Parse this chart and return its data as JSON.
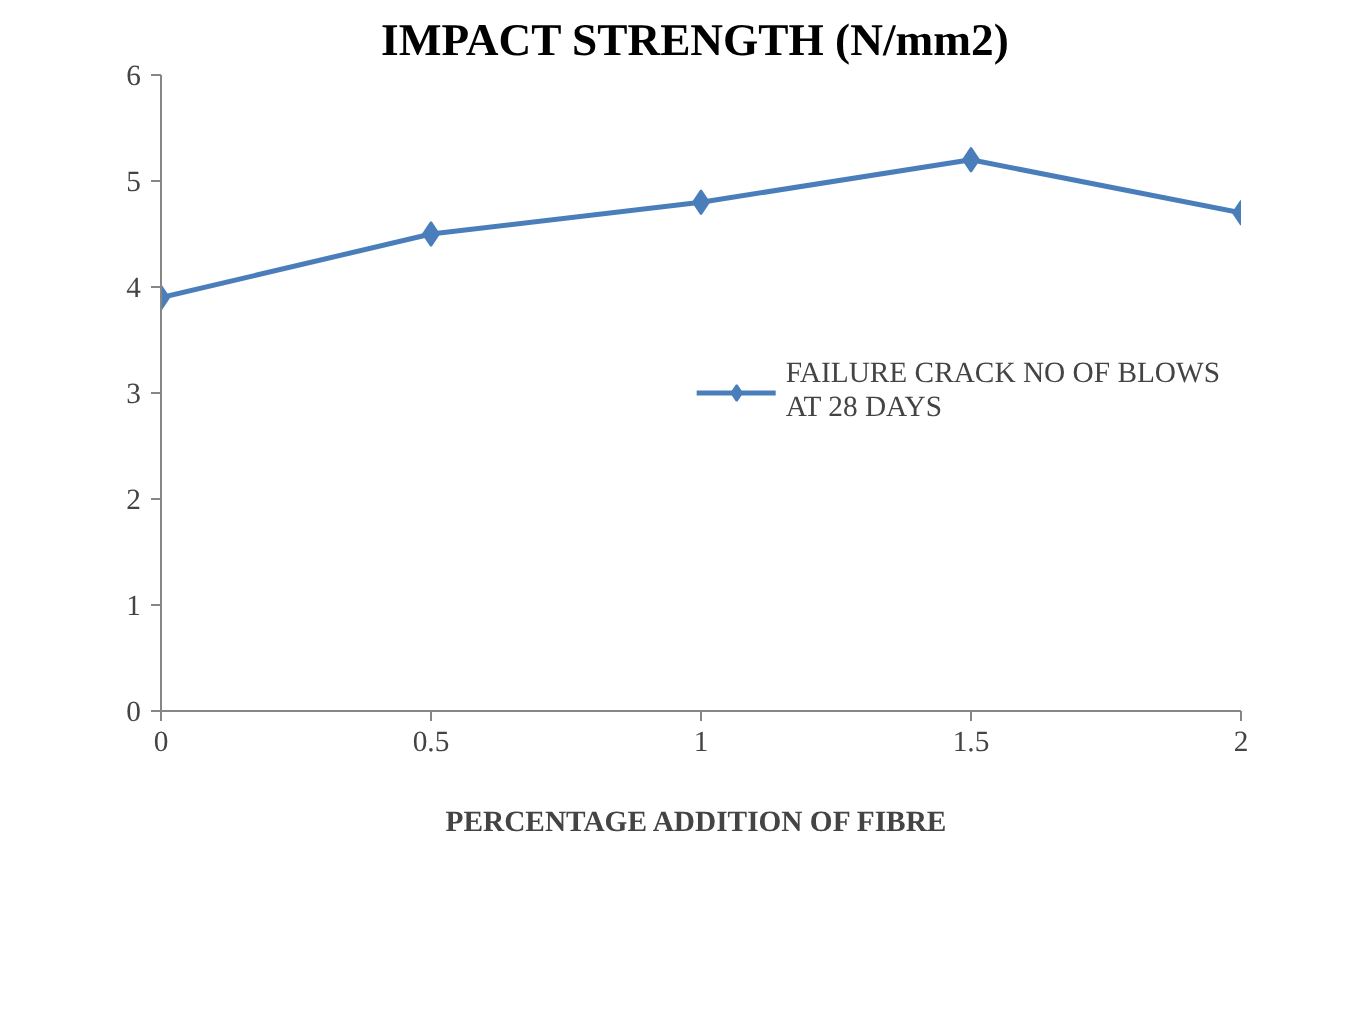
{
  "chart_data": {
    "type": "line",
    "title": "IMPACT STRENGTH  (N/mm2)",
    "xlabel": "PERCENTAGE ADDITION  OF FIBRE",
    "x": [
      0,
      0.5,
      1,
      1.5,
      2
    ],
    "series": [
      {
        "name": "FAILURE CRACK NO OF BLOWS AT 28 DAYS",
        "color": "#4a7ebb",
        "values": [
          3.9,
          4.5,
          4.8,
          5.2,
          4.7
        ]
      }
    ],
    "xlim": [
      0,
      2
    ],
    "xticks": [
      0,
      0.5,
      1,
      1.5,
      2
    ],
    "ylim": [
      0,
      6
    ],
    "yticks": [
      0,
      1,
      2,
      3,
      4,
      5,
      6
    ],
    "marker": "diamond",
    "line_style": "solid",
    "legend": "right",
    "grid": false
  }
}
